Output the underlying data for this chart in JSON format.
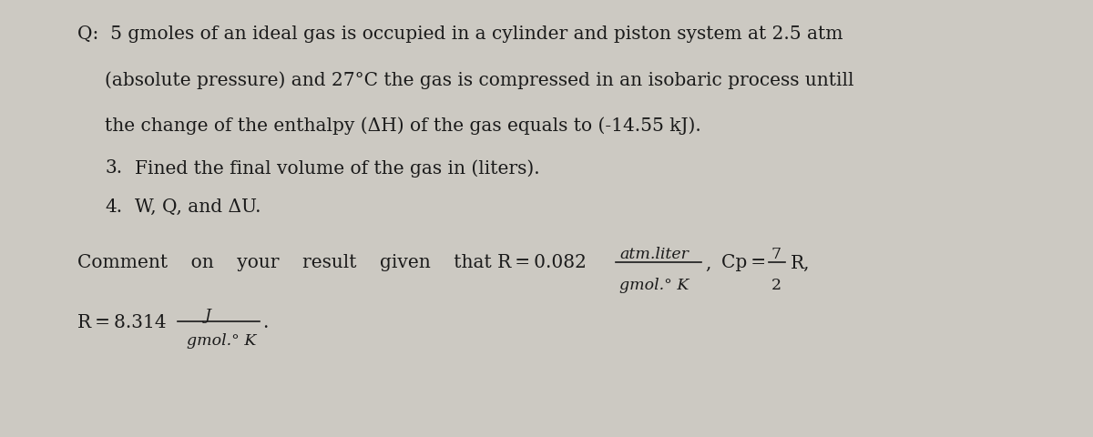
{
  "bg_color": "#ccc9c2",
  "text_color": "#1a1a1a",
  "body_fontsize": 14.5,
  "line1": "Q:  5 gmoles of an ideal gas is occupied in a cylinder and piston system at 2.5 atm",
  "line2": "(absolute pressure) and 27°C the gas is compressed in an isobaric process untill",
  "line3": "the change of the enthalpy (ΔH) of the gas equals to (-14.55 kJ).",
  "line4_num": "3.",
  "line4_text": "Fined the final volume of the gas in (liters).",
  "line5_num": "4.",
  "line5_text": "W, Q, and ΔU.",
  "comment_words": "Comment    on    your    result    given    that R = 0.082",
  "r_units_top": "atm.liter",
  "r_units_bot": "gmol.° K",
  "comma": ",",
  "cp_label": "Cp = ",
  "cp_frac_top": "7",
  "cp_frac_bot": "2",
  "cp_suffix": "R,",
  "r2_prefix": "R = 8.314",
  "r2_units_top": "J",
  "r2_units_bot": "gmol.° K",
  "r2_suffix": "."
}
